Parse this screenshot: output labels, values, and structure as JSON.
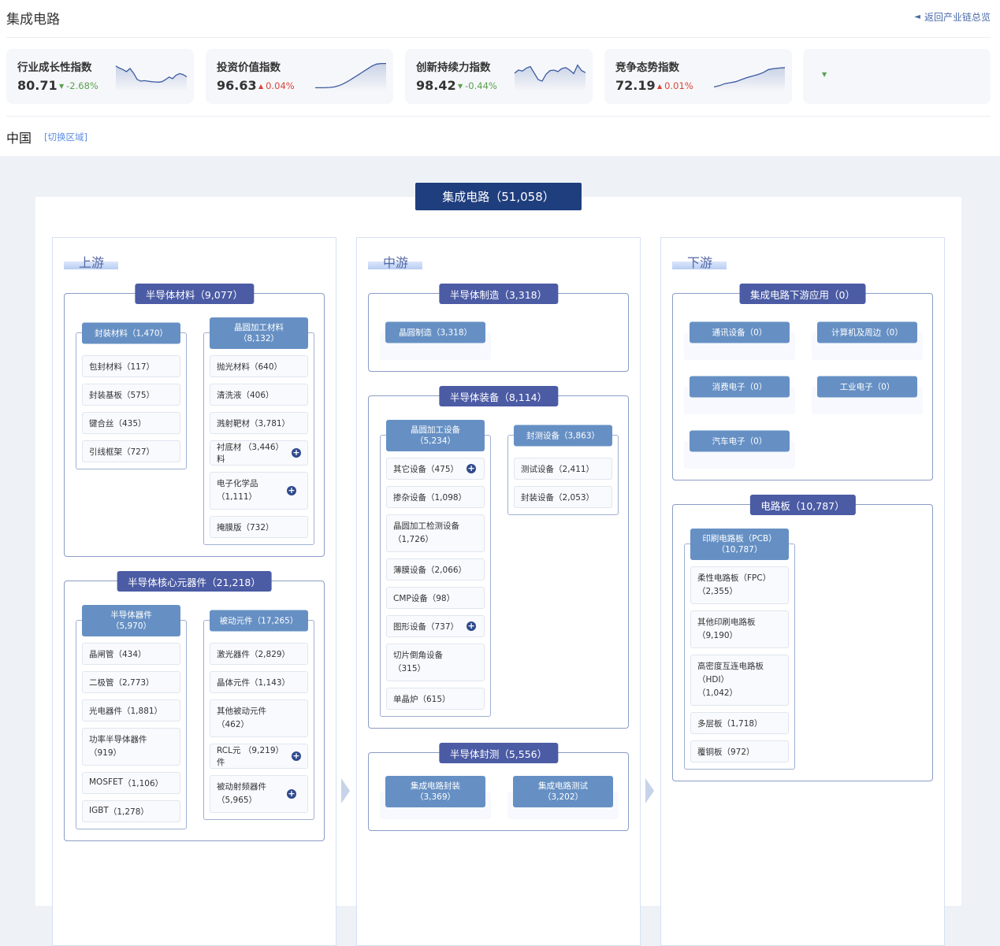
{
  "header": {
    "title": "集成电路",
    "back_label": "返回产业链总览",
    "back_icon": "arrow-left-icon"
  },
  "kpis": [
    {
      "title": "行业成长性指数",
      "value": "80.71",
      "change": "-2.68%",
      "direction": "down",
      "spark": [
        88,
        80,
        74,
        66,
        78,
        60,
        35,
        28,
        30,
        28,
        26,
        25,
        24,
        26,
        34,
        44,
        38,
        52,
        58,
        54,
        45
      ]
    },
    {
      "title": "投资价值指数",
      "value": "96.63",
      "change": "0.04%",
      "direction": "up",
      "spark": [
        2,
        2,
        2,
        3,
        5,
        10,
        18,
        28,
        40,
        52,
        64,
        76,
        88,
        96,
        98,
        98
      ]
    },
    {
      "title": "创新持续力指数",
      "value": "98.42",
      "change": "-0.44%",
      "direction": "down",
      "spark": [
        60,
        72,
        68,
        80,
        86,
        60,
        34,
        28,
        56,
        70,
        72,
        66,
        78,
        82,
        72,
        58,
        92,
        70,
        62
      ]
    },
    {
      "title": "竞争态势指数",
      "value": "72.19",
      "change": "0.01%",
      "direction": "up",
      "spark": [
        5,
        10,
        18,
        22,
        26,
        34,
        42,
        48,
        54,
        62,
        74,
        78,
        80,
        82
      ]
    },
    {
      "title": "",
      "value": "",
      "change": "",
      "direction": "down",
      "spark": []
    }
  ],
  "region": {
    "name": "中国",
    "switch_label": "[切换区域]"
  },
  "main_title": "集成电路（51,058）",
  "colors": {
    "main": "#1f3e7e",
    "group": "#4b5ba4",
    "sub": "#6690c4",
    "plus": "#2f4a8d",
    "down": "#5aa050",
    "up": "#d9443a"
  },
  "columns": [
    {
      "title": "上游",
      "groups": [
        {
          "label": "半导体材料（9,077）",
          "subs": [
            {
              "name": "封装材料",
              "count": "1,470",
              "items": [
                {
                  "name": "包封材料",
                  "count": "117"
                },
                {
                  "name": "封装基板",
                  "count": "575"
                },
                {
                  "name": "键合丝",
                  "count": "435"
                },
                {
                  "name": "引线框架",
                  "count": "727"
                }
              ]
            },
            {
              "name": "晶圆加工材料",
              "count": "8,132",
              "items": [
                {
                  "name": "抛光材料",
                  "count": "640"
                },
                {
                  "name": "清洗液",
                  "count": "406"
                },
                {
                  "name": "溅射靶材",
                  "count": "3,781"
                },
                {
                  "name": "衬底材料",
                  "count": "3,446",
                  "expand": true
                },
                {
                  "name": "电子化学品",
                  "count": "1,111",
                  "expand": true
                },
                {
                  "name": "掩膜版",
                  "count": "732"
                }
              ]
            }
          ]
        },
        {
          "label": "半导体核心元器件（21,218）",
          "subs": [
            {
              "name": "半导体器件",
              "count": "5,970",
              "items": [
                {
                  "name": "晶闸管",
                  "count": "434"
                },
                {
                  "name": "二极管",
                  "count": "2,773"
                },
                {
                  "name": "光电器件",
                  "count": "1,881"
                },
                {
                  "name": "功率半导体器件",
                  "count": "919"
                },
                {
                  "name": "MOSFET",
                  "count": "1,106"
                },
                {
                  "name": "IGBT",
                  "count": "1,278"
                }
              ]
            },
            {
              "name": "被动元件",
              "count": "17,265",
              "items": [
                {
                  "name": "激光器件",
                  "count": "2,829"
                },
                {
                  "name": "晶体元件",
                  "count": "1,143"
                },
                {
                  "name": "其他被动元件",
                  "count": "462"
                },
                {
                  "name": "RCL元件",
                  "count": "9,219",
                  "expand": true
                },
                {
                  "name": "被动射频器件",
                  "count": "5,965",
                  "expand": true
                }
              ]
            }
          ]
        }
      ]
    },
    {
      "title": "中游",
      "groups": [
        {
          "label": "半导体制造（3,318）",
          "subs": [
            {
              "name": "晶圆制造",
              "count": "3,318",
              "items": []
            }
          ]
        },
        {
          "label": "半导体装备（8,114）",
          "subs": [
            {
              "name": "晶圆加工设备",
              "count": "5,234",
              "items": [
                {
                  "name": "其它设备",
                  "count": "475",
                  "expand": true
                },
                {
                  "name": "掺杂设备",
                  "count": "1,098"
                },
                {
                  "name": "晶圆加工检测设备",
                  "count": "1,726"
                },
                {
                  "name": "薄膜设备",
                  "count": "2,066"
                },
                {
                  "name": "CMP设备",
                  "count": "98"
                },
                {
                  "name": "图形设备",
                  "count": "737",
                  "expand": true
                },
                {
                  "name": "切片倒角设备",
                  "count": "315"
                },
                {
                  "name": "单晶炉",
                  "count": "615"
                }
              ]
            },
            {
              "name": "封测设备",
              "count": "3,863",
              "items": [
                {
                  "name": "测试设备",
                  "count": "2,411"
                },
                {
                  "name": "封装设备",
                  "count": "2,053"
                }
              ]
            }
          ]
        },
        {
          "label": "半导体封测（5,556）",
          "subs": [
            {
              "name": "集成电路封装",
              "count": "3,369",
              "items": []
            },
            {
              "name": "集成电路测试",
              "count": "3,202",
              "items": []
            }
          ]
        }
      ]
    },
    {
      "title": "下游",
      "groups": [
        {
          "label": "集成电路下游应用（0）",
          "subs": [
            {
              "name": "通讯设备",
              "count": "0",
              "items": []
            },
            {
              "name": "计算机及周边",
              "count": "0",
              "items": []
            },
            {
              "name": "消费电子",
              "count": "0",
              "items": []
            },
            {
              "name": "工业电子",
              "count": "0",
              "items": []
            },
            {
              "name": "汽车电子",
              "count": "0",
              "items": []
            }
          ]
        },
        {
          "label": "电路板（10,787）",
          "subs": [
            {
              "name": "印刷电路板（PCB）",
              "count": "10,787",
              "items": [
                {
                  "name": "柔性电路板（FPC）",
                  "count": "2,355"
                },
                {
                  "name": "其他印刷电路板",
                  "count": "9,190"
                },
                {
                  "name": "高密度互连电路板（HDI）",
                  "count": "1,042"
                },
                {
                  "name": "多层板",
                  "count": "1,718"
                },
                {
                  "name": "覆铜板",
                  "count": "972"
                }
              ]
            }
          ]
        }
      ]
    }
  ]
}
